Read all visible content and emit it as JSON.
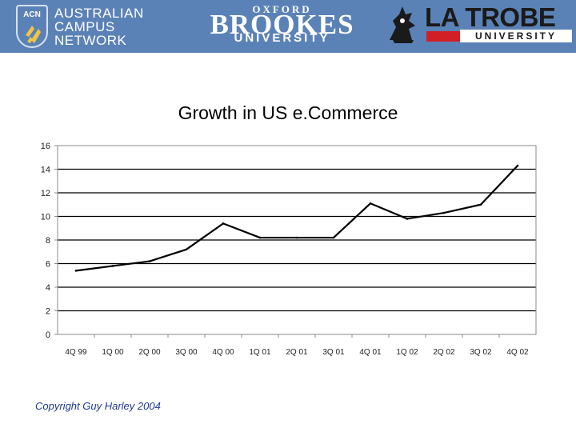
{
  "header": {
    "acn": {
      "badge": "ACN",
      "lines": [
        "AUSTRALIAN",
        "CAMPUS",
        "NETWORK"
      ]
    },
    "brookes": {
      "top": "OXFORD",
      "name": "BROOKES",
      "bottom": "UNIVERSITY"
    },
    "latrobe": {
      "name": "LA TROBE",
      "bottom": "UNIVERSITY"
    },
    "colors": {
      "banner": "#5b82b6",
      "latrobe_red": "#d21f26"
    }
  },
  "chart_data": {
    "type": "line",
    "title": "Growth in US e.Commerce",
    "xlabel": "",
    "ylabel": "",
    "categories": [
      "4Q 99",
      "1Q 00",
      "2Q 00",
      "3Q 00",
      "4Q 00",
      "1Q 01",
      "2Q 01",
      "3Q 01",
      "4Q 01",
      "1Q 02",
      "2Q 02",
      "3Q 02",
      "4Q 02"
    ],
    "series": [
      {
        "values": [
          5.4,
          5.8,
          6.2,
          7.2,
          9.4,
          8.2,
          8.2,
          8.2,
          11.1,
          9.8,
          10.3,
          11.0,
          14.3
        ]
      }
    ],
    "ylim": [
      0,
      16
    ],
    "yticks": [
      0,
      2,
      4,
      6,
      8,
      10,
      12,
      14,
      16
    ],
    "grid": true
  },
  "footer": {
    "copyright": "Copyright Guy Harley 2004"
  }
}
